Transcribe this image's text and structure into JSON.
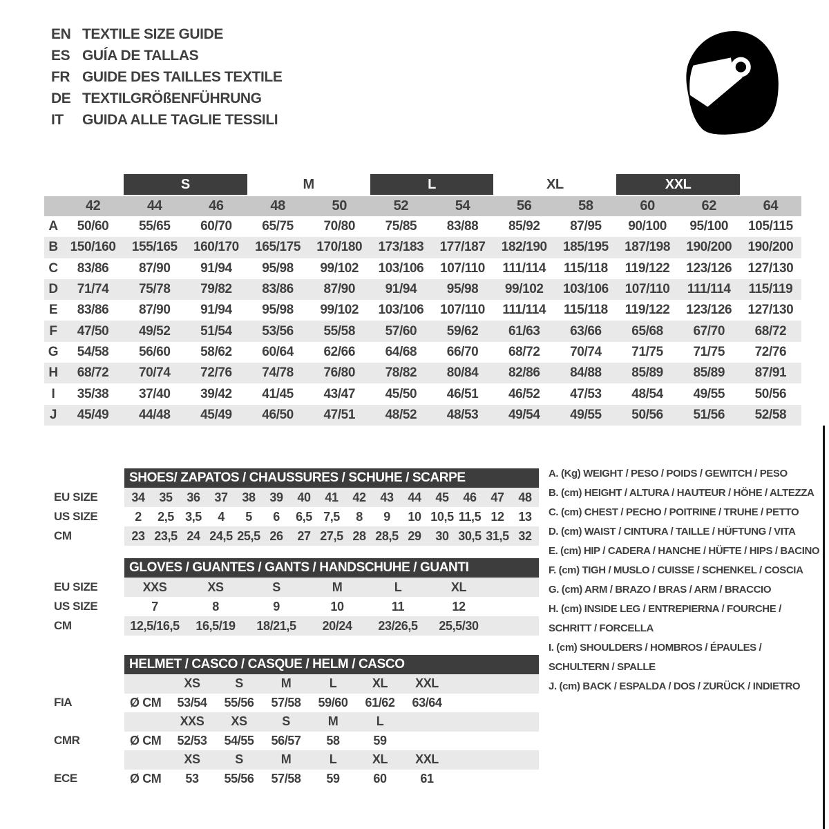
{
  "header": {
    "languages": [
      {
        "code": "EN",
        "title": "TEXTILE SIZE GUIDE"
      },
      {
        "code": "ES",
        "title": "GUÍA DE TALLAS"
      },
      {
        "code": "FR",
        "title": "GUIDE DES TAILLES TEXTILE"
      },
      {
        "code": "DE",
        "title": "TEXTILGRÖßENFÜHRUNG"
      },
      {
        "code": "IT",
        "title": "GUIDA ALLE TAGLIE TESSILI"
      }
    ],
    "icon": "racing-helmet"
  },
  "colors": {
    "bar_dark": "#3d3d3d",
    "strip_gray": "#c7c7c7",
    "row_stripe": "#e9e9e9",
    "text": "#3f3f3f"
  },
  "textile": {
    "size_groups": [
      {
        "label": "S",
        "bar": true
      },
      {
        "label": "M",
        "bar": false
      },
      {
        "label": "L",
        "bar": true
      },
      {
        "label": "XL",
        "bar": false
      },
      {
        "label": "XXL",
        "bar": true
      }
    ],
    "sizes": [
      "42",
      "44",
      "46",
      "48",
      "50",
      "52",
      "54",
      "56",
      "58",
      "60",
      "62",
      "64"
    ],
    "rows": [
      {
        "letter": "A",
        "values": [
          "50/60",
          "55/65",
          "60/70",
          "65/75",
          "70/80",
          "75/85",
          "83/88",
          "85/92",
          "87/95",
          "90/100",
          "95/100",
          "105/115"
        ]
      },
      {
        "letter": "B",
        "values": [
          "150/160",
          "155/165",
          "160/170",
          "165/175",
          "170/180",
          "173/183",
          "177/187",
          "182/190",
          "185/195",
          "187/198",
          "190/200",
          "190/200"
        ]
      },
      {
        "letter": "C",
        "values": [
          "83/86",
          "87/90",
          "91/94",
          "95/98",
          "99/102",
          "103/106",
          "107/110",
          "111/114",
          "115/118",
          "119/122",
          "123/126",
          "127/130"
        ]
      },
      {
        "letter": "D",
        "values": [
          "71/74",
          "75/78",
          "79/82",
          "83/86",
          "87/90",
          "91/94",
          "95/98",
          "99/102",
          "103/106",
          "107/110",
          "111/114",
          "115/119"
        ]
      },
      {
        "letter": "E",
        "values": [
          "83/86",
          "87/90",
          "91/94",
          "95/98",
          "99/102",
          "103/106",
          "107/110",
          "111/114",
          "115/118",
          "119/122",
          "123/126",
          "127/130"
        ]
      },
      {
        "letter": "F",
        "values": [
          "47/50",
          "49/52",
          "51/54",
          "53/56",
          "55/58",
          "57/60",
          "59/62",
          "61/63",
          "63/66",
          "65/68",
          "67/70",
          "68/72"
        ]
      },
      {
        "letter": "G",
        "values": [
          "54/58",
          "56/60",
          "58/62",
          "60/64",
          "62/66",
          "64/68",
          "66/70",
          "68/72",
          "70/74",
          "71/75",
          "71/75",
          "72/76"
        ]
      },
      {
        "letter": "H",
        "values": [
          "68/72",
          "70/74",
          "72/76",
          "74/78",
          "76/80",
          "78/82",
          "80/84",
          "82/86",
          "84/88",
          "85/89",
          "85/89",
          "87/91"
        ]
      },
      {
        "letter": "I",
        "values": [
          "35/38",
          "37/40",
          "39/42",
          "41/45",
          "43/47",
          "45/50",
          "46/51",
          "46/52",
          "47/53",
          "48/54",
          "49/55",
          "50/56"
        ]
      },
      {
        "letter": "J",
        "values": [
          "45/49",
          "44/48",
          "45/49",
          "46/50",
          "47/51",
          "48/52",
          "48/53",
          "49/54",
          "49/55",
          "50/56",
          "51/56",
          "52/58"
        ]
      }
    ]
  },
  "shoes": {
    "title": "SHOES/ ZAPATOS / CHAUSSURES / SCHUHE / SCARPE",
    "rows": [
      {
        "label": "EU SIZE",
        "values": [
          "34",
          "35",
          "36",
          "37",
          "38",
          "39",
          "40",
          "41",
          "42",
          "43",
          "44",
          "45",
          "46",
          "47",
          "48"
        ]
      },
      {
        "label": "US SIZE",
        "values": [
          "2",
          "2,5",
          "3,5",
          "4",
          "5",
          "6",
          "6,5",
          "7,5",
          "8",
          "9",
          "10",
          "10,5",
          "11,5",
          "12",
          "13"
        ]
      },
      {
        "label": "CM",
        "values": [
          "23",
          "23,5",
          "24",
          "24,5",
          "25,5",
          "26",
          "27",
          "27,5",
          "28",
          "28,5",
          "29",
          "30",
          "30,5",
          "31,5",
          "32"
        ]
      }
    ]
  },
  "gloves": {
    "title": "GLOVES / GUANTES / GANTS / HANDSCHUHE / GUANTI",
    "rows": [
      {
        "label": "EU SIZE",
        "values": [
          "XXS",
          "XS",
          "S",
          "M",
          "L",
          "XL"
        ]
      },
      {
        "label": "US SIZE",
        "values": [
          "7",
          "8",
          "9",
          "10",
          "11",
          "12"
        ]
      },
      {
        "label": "CM",
        "values": [
          "12,5/16,5",
          "16,5/19",
          "18/21,5",
          "20/24",
          "23/26,5",
          "25,5/30"
        ]
      }
    ]
  },
  "helmet": {
    "title": "HELMET / CASCO / CASQUE / HELM / CASCO",
    "sections": [
      {
        "label": "FIA",
        "unit": "Ø CM",
        "sizes": [
          "XS",
          "S",
          "M",
          "L",
          "XL",
          "XXL"
        ],
        "values": [
          "53/54",
          "55/56",
          "57/58",
          "59/60",
          "61/62",
          "63/64"
        ]
      },
      {
        "label": "CMR",
        "unit": "Ø CM",
        "sizes": [
          "XXS",
          "XS",
          "S",
          "M",
          "L"
        ],
        "values": [
          "52/53",
          "54/55",
          "56/57",
          "58",
          "59"
        ]
      },
      {
        "label": "ECE",
        "unit": "Ø CM",
        "sizes": [
          "XS",
          "S",
          "M",
          "L",
          "XL",
          "XXL"
        ],
        "values": [
          "53",
          "55/56",
          "57/58",
          "59",
          "60",
          "61"
        ]
      }
    ]
  },
  "legend": [
    {
      "key": "A. (Kg)",
      "lines": [
        "A. (Kg) WEIGHT / PESO / POIDS / GEWITCH / PESO"
      ]
    },
    {
      "key": "B. (cm)",
      "lines": [
        "B. (cm) HEIGHT / ALTURA / HAUTEUR / HÖHE / ALTEZZA"
      ]
    },
    {
      "key": "C. (cm)",
      "lines": [
        "C. (cm) CHEST / PECHO / POITRINE / TRUHE / PETTO"
      ]
    },
    {
      "key": "D. (cm)",
      "lines": [
        "D. (cm) WAIST / CINTURA / TAILLE / HÜFTUNG / VITA"
      ]
    },
    {
      "key": "E. (cm)",
      "lines": [
        "E. (cm) HIP / CADERA / HANCHE / HÜFTE / HIPS / BACINO"
      ]
    },
    {
      "key": "F. (cm)",
      "lines": [
        "F. (cm) TIGH / MUSLO / CUISSE / SCHENKEL / COSCIA"
      ]
    },
    {
      "key": "G. (cm)",
      "lines": [
        "G. (cm) ARM / BRAZO / BRAS / ARM / BRACCIO"
      ]
    },
    {
      "key": "H. (cm)",
      "lines": [
        "H. (cm) INSIDE LEG / ENTREPIERNA / FOURCHE /",
        "SCHRITT / FORCELLA"
      ]
    },
    {
      "key": "I. (cm)",
      "lines": [
        "I. (cm) SHOULDERS / HOMBROS / ÉPAULES /",
        "SCHULTERN / SPALLE"
      ]
    },
    {
      "key": "J. (cm)",
      "lines": [
        "J. (cm) BACK / ESPALDA / DOS / ZURÜCK / INDIETRO"
      ]
    }
  ]
}
